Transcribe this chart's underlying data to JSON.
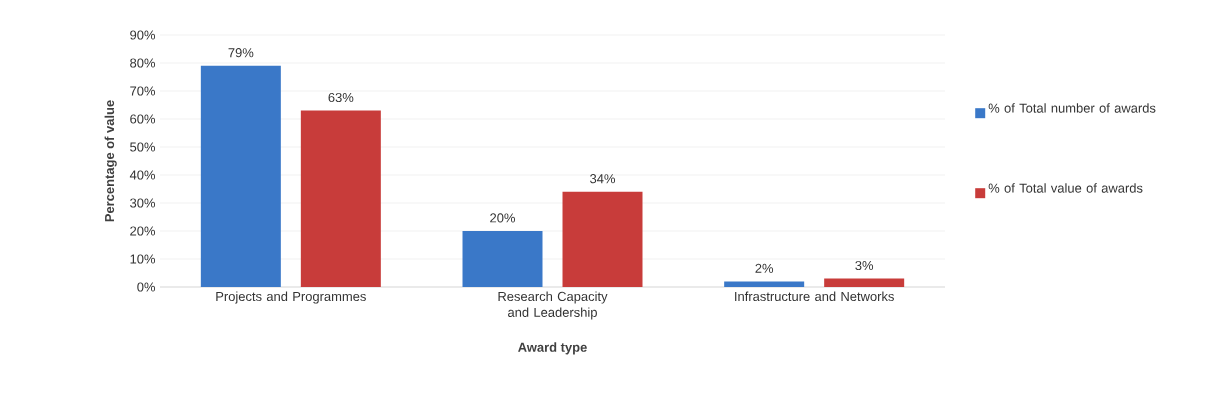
{
  "chart_data": {
    "type": "bar",
    "xlabel": "Award type",
    "ylabel": "Percentage of value",
    "categories": [
      "Projects and Programmes",
      "Research Capacity and Leadership",
      "Infrastructure and Networks"
    ],
    "series": [
      {
        "name": "% of Total number of awards",
        "color": "#3a78c8",
        "values": [
          79,
          20,
          2
        ],
        "value_labels": [
          "79%",
          "20%",
          "2%"
        ]
      },
      {
        "name": "% of Total value of awards",
        "color": "#c83c3a",
        "values": [
          63,
          34,
          3
        ],
        "value_labels": [
          "63%",
          "34%",
          "3%"
        ]
      }
    ],
    "ylim": [
      0,
      90
    ],
    "yticks": [
      {
        "value": 0,
        "label": "0%"
      },
      {
        "value": 10,
        "label": "10%"
      },
      {
        "value": 20,
        "label": "20%"
      },
      {
        "value": 30,
        "label": "30%"
      },
      {
        "value": 40,
        "label": "40%"
      },
      {
        "value": 50,
        "label": "50%"
      },
      {
        "value": 60,
        "label": "60%"
      },
      {
        "value": 70,
        "label": "70%"
      },
      {
        "value": 80,
        "label": "80%"
      },
      {
        "value": 90,
        "label": "90%"
      }
    ],
    "grid": "y",
    "legend": "right"
  }
}
